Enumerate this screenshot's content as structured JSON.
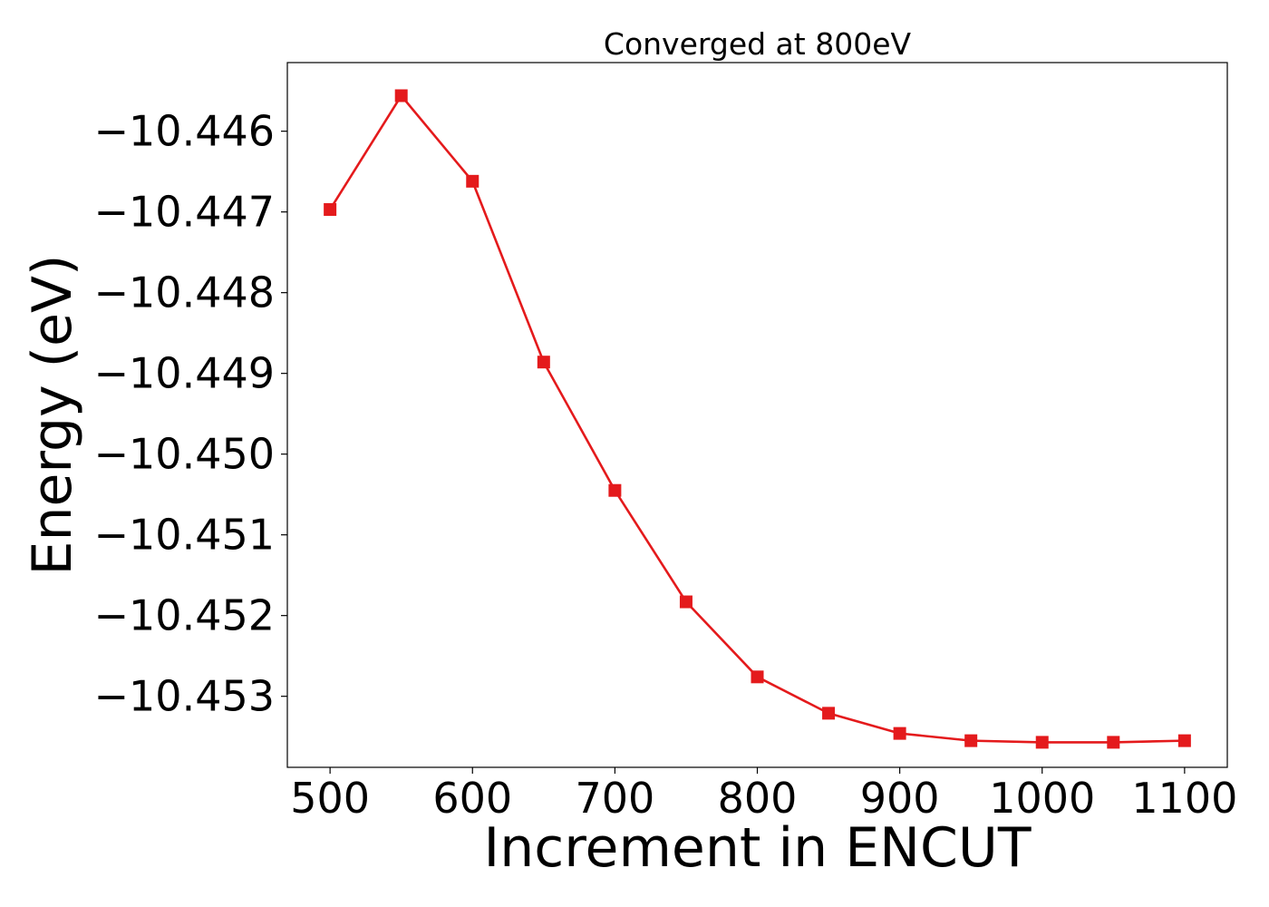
{
  "chart_data": {
    "type": "line",
    "title": "Converged at 800eV",
    "xlabel": "Increment in ENCUT",
    "ylabel": "Energy (eV)",
    "xlim": [
      470,
      1130
    ],
    "ylim": [
      -10.45388,
      -10.44515
    ],
    "xticks": [
      500,
      600,
      700,
      800,
      900,
      1000,
      1100
    ],
    "xtick_labels": [
      "500",
      "600",
      "700",
      "800",
      "900",
      "1000",
      "1100"
    ],
    "yticks": [
      -10.446,
      -10.447,
      -10.448,
      -10.449,
      -10.45,
      -10.451,
      -10.452,
      -10.453
    ],
    "ytick_labels": [
      "−10.446",
      "−10.447",
      "−10.448",
      "−10.449",
      "−10.450",
      "−10.451",
      "−10.452",
      "−10.453"
    ],
    "grid": false,
    "legend": "none",
    "series": [
      {
        "color": "#e41a1c",
        "marker": "square",
        "x": [
          500,
          550,
          600,
          650,
          700,
          750,
          800,
          850,
          900,
          950,
          1000,
          1050,
          1100
        ],
        "y": [
          -10.44697,
          -10.44556,
          -10.44662,
          -10.44886,
          -10.45045,
          -10.45183,
          -10.45276,
          -10.45321,
          -10.45346,
          -10.45355,
          -10.45357,
          -10.45357,
          -10.45355
        ]
      }
    ]
  }
}
